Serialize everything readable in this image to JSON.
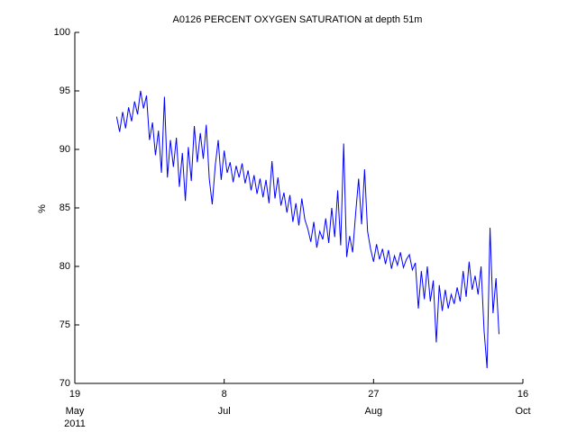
{
  "chart_data": {
    "type": "line",
    "title": "A0126 PERCENT OXYGEN SATURATION at depth 51m",
    "ylabel": "%",
    "year_label": "2011",
    "xlim": [
      "2011-05-19",
      "2011-10-16"
    ],
    "xticks": [
      {
        "value": "2011-05-19",
        "label": "19",
        "month": "May"
      },
      {
        "value": "2011-07-08",
        "label": "8",
        "month": "Jul"
      },
      {
        "value": "2011-08-27",
        "label": "27",
        "month": "Aug"
      },
      {
        "value": "2011-10-16",
        "label": "16",
        "month": "Oct"
      }
    ],
    "ylim": [
      70,
      100
    ],
    "yticks": [
      70,
      75,
      80,
      85,
      90,
      95,
      100
    ],
    "grid": false,
    "x": [
      "2011-06-02",
      "2011-06-03",
      "2011-06-04",
      "2011-06-05",
      "2011-06-06",
      "2011-06-07",
      "2011-06-08",
      "2011-06-09",
      "2011-06-10",
      "2011-06-11",
      "2011-06-12",
      "2011-06-13",
      "2011-06-14",
      "2011-06-15",
      "2011-06-16",
      "2011-06-17",
      "2011-06-18",
      "2011-06-19",
      "2011-06-20",
      "2011-06-21",
      "2011-06-22",
      "2011-06-23",
      "2011-06-24",
      "2011-06-25",
      "2011-06-26",
      "2011-06-27",
      "2011-06-28",
      "2011-06-29",
      "2011-06-30",
      "2011-07-01",
      "2011-07-02",
      "2011-07-03",
      "2011-07-04",
      "2011-07-05",
      "2011-07-06",
      "2011-07-07",
      "2011-07-08",
      "2011-07-09",
      "2011-07-10",
      "2011-07-11",
      "2011-07-12",
      "2011-07-13",
      "2011-07-14",
      "2011-07-15",
      "2011-07-16",
      "2011-07-17",
      "2011-07-18",
      "2011-07-19",
      "2011-07-20",
      "2011-07-21",
      "2011-07-22",
      "2011-07-23",
      "2011-07-24",
      "2011-07-25",
      "2011-07-26",
      "2011-07-27",
      "2011-07-28",
      "2011-07-29",
      "2011-07-30",
      "2011-07-31",
      "2011-08-01",
      "2011-08-02",
      "2011-08-03",
      "2011-08-04",
      "2011-08-05",
      "2011-08-06",
      "2011-08-07",
      "2011-08-08",
      "2011-08-09",
      "2011-08-10",
      "2011-08-11",
      "2011-08-12",
      "2011-08-13",
      "2011-08-14",
      "2011-08-15",
      "2011-08-16",
      "2011-08-17",
      "2011-08-18",
      "2011-08-19",
      "2011-08-20",
      "2011-08-21",
      "2011-08-22",
      "2011-08-23",
      "2011-08-24",
      "2011-08-25",
      "2011-08-26",
      "2011-08-27",
      "2011-08-28",
      "2011-08-29",
      "2011-08-30",
      "2011-08-31",
      "2011-09-01",
      "2011-09-02",
      "2011-09-03",
      "2011-09-04",
      "2011-09-05",
      "2011-09-06",
      "2011-09-07",
      "2011-09-08",
      "2011-09-09",
      "2011-09-10",
      "2011-09-11",
      "2011-09-12",
      "2011-09-13",
      "2011-09-14",
      "2011-09-15",
      "2011-09-16",
      "2011-09-17",
      "2011-09-18",
      "2011-09-19",
      "2011-09-20",
      "2011-09-21",
      "2011-09-22",
      "2011-09-23",
      "2011-09-24",
      "2011-09-25",
      "2011-09-26",
      "2011-09-27",
      "2011-09-28",
      "2011-09-29",
      "2011-09-30",
      "2011-10-01",
      "2011-10-02",
      "2011-10-03",
      "2011-10-04",
      "2011-10-05",
      "2011-10-06",
      "2011-10-07",
      "2011-10-08"
    ],
    "series": [
      {
        "name": "A0126",
        "color": "#0000ff",
        "values": [
          92.8,
          91.5,
          93.2,
          91.8,
          93.6,
          92.4,
          94.1,
          93.0,
          95.0,
          93.5,
          94.6,
          90.8,
          92.3,
          89.5,
          91.6,
          88.0,
          94.5,
          87.6,
          90.8,
          88.5,
          91.0,
          86.8,
          89.7,
          85.6,
          90.2,
          87.3,
          92.0,
          88.9,
          91.4,
          89.2,
          92.1,
          87.5,
          85.3,
          88.6,
          90.8,
          87.4,
          89.9,
          88.0,
          88.9,
          87.2,
          88.6,
          87.6,
          88.8,
          87.1,
          88.2,
          86.5,
          87.8,
          86.2,
          87.5,
          85.9,
          87.4,
          85.4,
          89.0,
          85.8,
          87.6,
          85.2,
          86.3,
          84.6,
          86.1,
          83.8,
          85.4,
          83.5,
          85.8,
          84.0,
          83.2,
          82.1,
          83.8,
          81.6,
          83.0,
          82.3,
          84.1,
          82.0,
          85.0,
          82.5,
          86.5,
          81.8,
          90.5,
          80.8,
          82.6,
          81.2,
          84.5,
          87.5,
          83.6,
          88.3,
          83.0,
          81.5,
          80.4,
          81.9,
          80.6,
          81.5,
          80.2,
          81.4,
          79.8,
          80.9,
          80.1,
          81.2,
          79.9,
          80.6,
          81.0,
          79.7,
          80.3,
          76.4,
          79.6,
          77.2,
          80.0,
          77.0,
          78.8,
          73.5,
          78.4,
          76.2,
          78.0,
          76.4,
          77.6,
          76.8,
          78.2,
          77.0,
          79.6,
          77.4,
          80.4,
          78.0,
          79.2,
          77.6,
          80.0,
          74.5,
          71.3,
          83.3,
          76.0,
          79.0,
          74.2
        ]
      }
    ]
  }
}
